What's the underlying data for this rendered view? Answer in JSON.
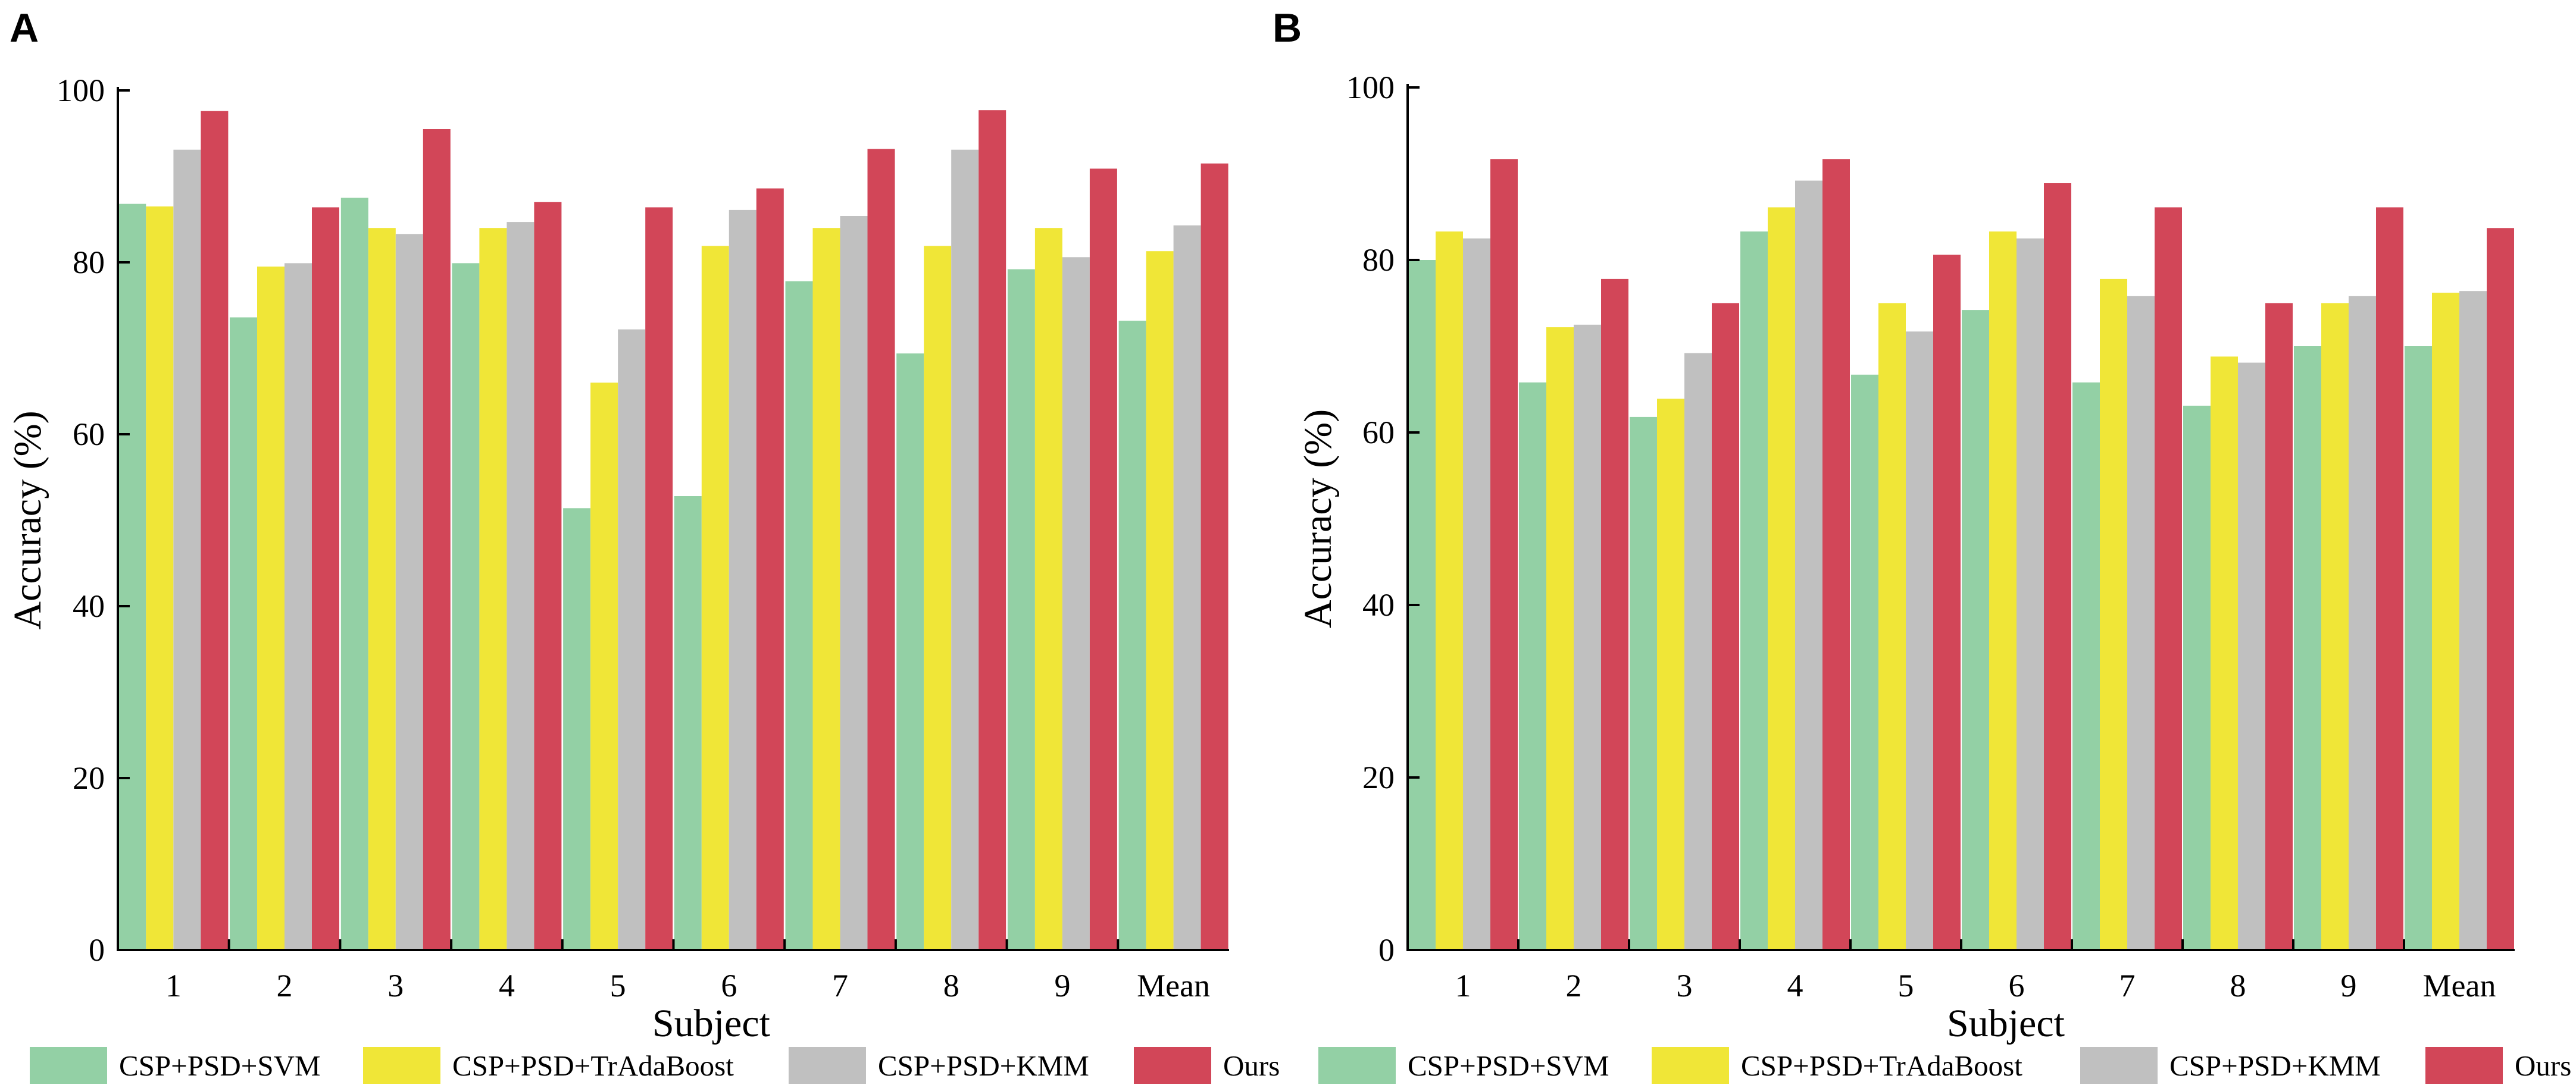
{
  "figure": {
    "colors": {
      "svm": "#93d0a5",
      "tradaboost": "#f0e637",
      "kmm": "#c0c0c0",
      "ours": "#d24658",
      "axis": "#000000",
      "background": "#ffffff"
    }
  },
  "chart_data": [
    {
      "panel": "A",
      "type": "bar",
      "xlabel": "Subject",
      "ylabel": "Accuracy (%)",
      "ylim": [
        0,
        100
      ],
      "yticks": [
        0,
        20,
        40,
        60,
        80,
        100
      ],
      "grid": false,
      "legend_position": "bottom",
      "categories": [
        "1",
        "2",
        "3",
        "4",
        "5",
        "6",
        "7",
        "8",
        "9",
        "Mean"
      ],
      "series": [
        {
          "name": "CSP+PSD+SVM",
          "color_key": "svm",
          "values": [
            86.8,
            73.6,
            87.5,
            79.9,
            51.4,
            52.8,
            77.8,
            69.4,
            79.2,
            73.2
          ]
        },
        {
          "name": "CSP+PSD+TrAdaBoost",
          "color_key": "tradaboost",
          "values": [
            86.5,
            79.5,
            84.0,
            84.0,
            66.0,
            81.9,
            84.0,
            81.9,
            84.0,
            81.3
          ]
        },
        {
          "name": "CSP+PSD+KMM",
          "color_key": "kmm",
          "values": [
            93.1,
            79.9,
            83.3,
            84.7,
            72.2,
            86.1,
            85.4,
            93.1,
            80.6,
            84.3
          ]
        },
        {
          "name": "Ours",
          "color_key": "ours",
          "values": [
            97.6,
            86.4,
            95.5,
            87.0,
            86.4,
            88.6,
            93.2,
            97.7,
            90.9,
            91.5
          ]
        }
      ]
    },
    {
      "panel": "B",
      "type": "bar",
      "xlabel": "Subject",
      "ylabel": "Accuracy (%)",
      "ylim": [
        0,
        100
      ],
      "yticks": [
        0,
        20,
        40,
        60,
        80,
        100
      ],
      "grid": false,
      "legend_position": "bottom",
      "categories": [
        "1",
        "2",
        "3",
        "4",
        "5",
        "6",
        "7",
        "8",
        "9",
        "Mean"
      ],
      "series": [
        {
          "name": "CSP+PSD+SVM",
          "color_key": "svm",
          "values": [
            80.0,
            65.8,
            61.8,
            83.3,
            66.7,
            74.2,
            65.8,
            63.1,
            70.0,
            70.0
          ]
        },
        {
          "name": "CSP+PSD+TrAdaBoost",
          "color_key": "tradaboost",
          "values": [
            83.3,
            72.2,
            63.9,
            86.1,
            75.0,
            83.3,
            77.8,
            68.8,
            75.0,
            76.2
          ]
        },
        {
          "name": "CSP+PSD+KMM",
          "color_key": "kmm",
          "values": [
            82.5,
            72.5,
            69.2,
            89.2,
            71.7,
            82.5,
            75.8,
            68.1,
            75.8,
            76.4
          ]
        },
        {
          "name": "Ours",
          "color_key": "ours",
          "values": [
            91.7,
            77.8,
            75.0,
            91.7,
            80.6,
            88.9,
            86.1,
            75.0,
            86.1,
            83.7
          ]
        }
      ]
    }
  ]
}
